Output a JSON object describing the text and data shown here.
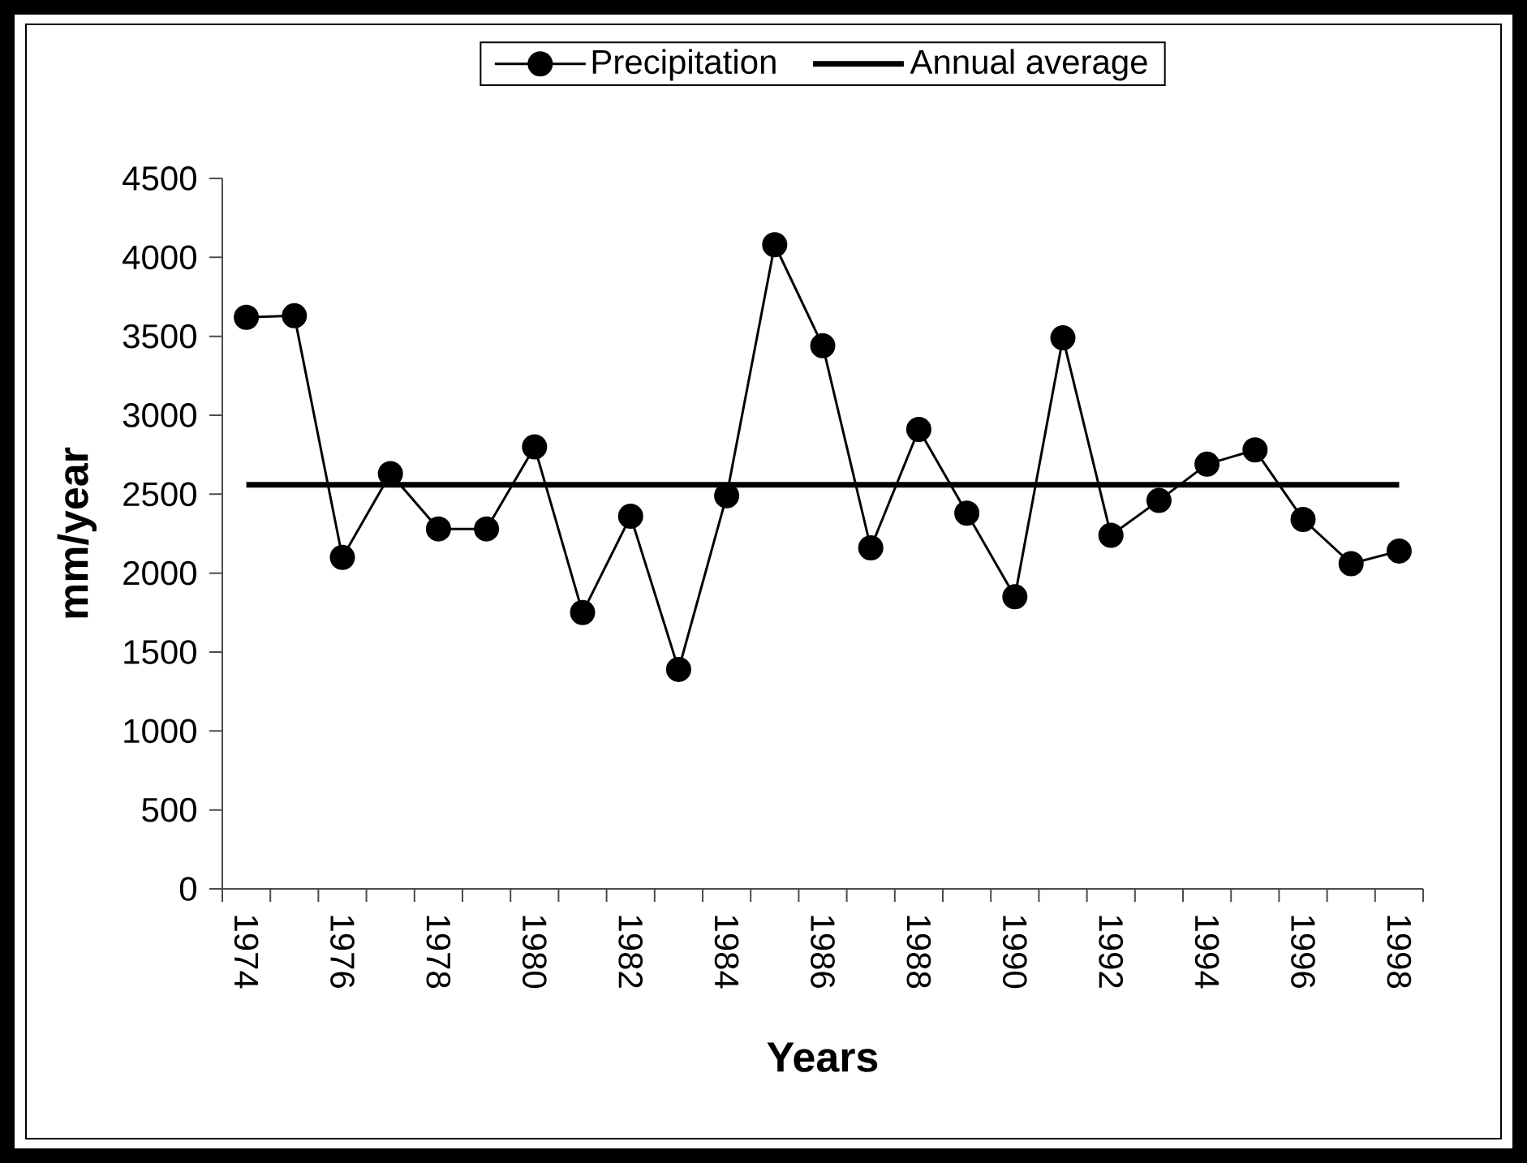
{
  "chart_data": {
    "type": "line",
    "xlabel": "Years",
    "ylabel": "mm/year",
    "categories": [
      "1974",
      null,
      "1976",
      null,
      "1978",
      null,
      "1980",
      null,
      "1982",
      null,
      "1984",
      null,
      "1986",
      null,
      "1988",
      null,
      "1990",
      null,
      "1992",
      null,
      "1994",
      null,
      "1996",
      null,
      "1998"
    ],
    "series": [
      {
        "name": "Precipitation",
        "color": "#000000",
        "marker": "circle",
        "values": [
          3620,
          3630,
          2100,
          2630,
          2280,
          2280,
          2800,
          1750,
          2360,
          1390,
          2490,
          4080,
          3440,
          2160,
          2910,
          2380,
          1850,
          3490,
          2240,
          2460,
          2690,
          2780,
          2340,
          2060,
          2140
        ]
      },
      {
        "name": "Annual average",
        "color": "#000000",
        "marker": "none",
        "values": [
          2560,
          2560,
          2560,
          2560,
          2560,
          2560,
          2560,
          2560,
          2560,
          2560,
          2560,
          2560,
          2560,
          2560,
          2560,
          2560,
          2560,
          2560,
          2560,
          2560,
          2560,
          2560,
          2560,
          2560,
          2560
        ]
      }
    ],
    "ylim": [
      0,
      4500
    ],
    "yticks": [
      0,
      500,
      1000,
      1500,
      2000,
      2500,
      3000,
      3500,
      4000,
      4500
    ],
    "legend": "top"
  }
}
